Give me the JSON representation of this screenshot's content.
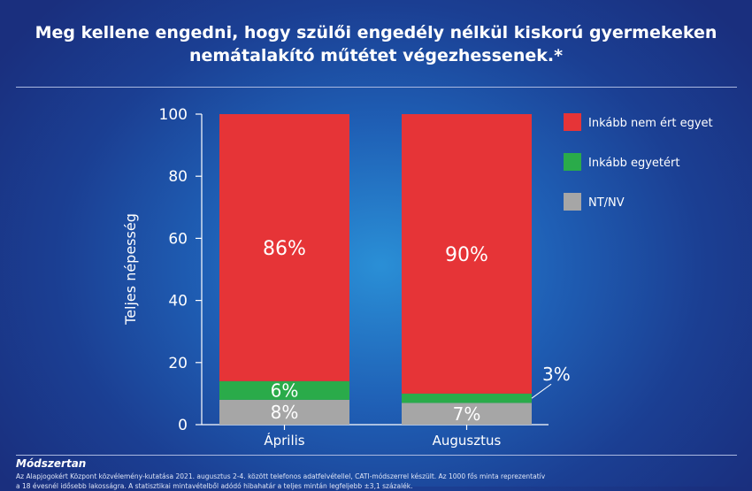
{
  "header": {
    "title_line1": "Meg kellene engedni, hogy szülői engedély nélkül kiskorú gyermekeken",
    "title_line2": "nemátalakító műtétet végezhessenek.*"
  },
  "footer": {
    "method_title": "Módszertan",
    "method_text_1": "Az Alapjogokért Központ közvélemény-kutatása 2021. augusztus 2-4. között telefonos adatfelvétellel, CATI-módszerrel készült. Az 1000 fős minta reprezentatív",
    "method_text_2": "a 18 évesnél idősebb lakosságra. A statisztikai mintavételből adódó hibahatár a teljes mintán legfeljebb ±3,1 százalék."
  },
  "chart_data": {
    "type": "bar",
    "stacked": true,
    "categories": [
      "Április",
      "Augusztus"
    ],
    "series": [
      {
        "name": "NT/NV",
        "values": [
          8,
          7
        ],
        "labels": [
          "8%",
          "7%"
        ],
        "color": "#a6a6a6"
      },
      {
        "name": "Inkább egyetért",
        "values": [
          6,
          3
        ],
        "labels": [
          "6%",
          "3%"
        ],
        "color": "#2aab4a"
      },
      {
        "name": "Inkább nem ért egyet",
        "values": [
          86,
          90
        ],
        "labels": [
          "86%",
          "90%"
        ],
        "color": "#e63437"
      }
    ],
    "ylabel": "Teljes népesség",
    "ylim": [
      0,
      100
    ],
    "yticks": [
      0,
      20,
      40,
      60,
      80,
      100
    ],
    "legend_order": [
      "Inkább nem ért egyet",
      "Inkább egyetért",
      "NT/NV"
    ],
    "legend_position": "right"
  }
}
